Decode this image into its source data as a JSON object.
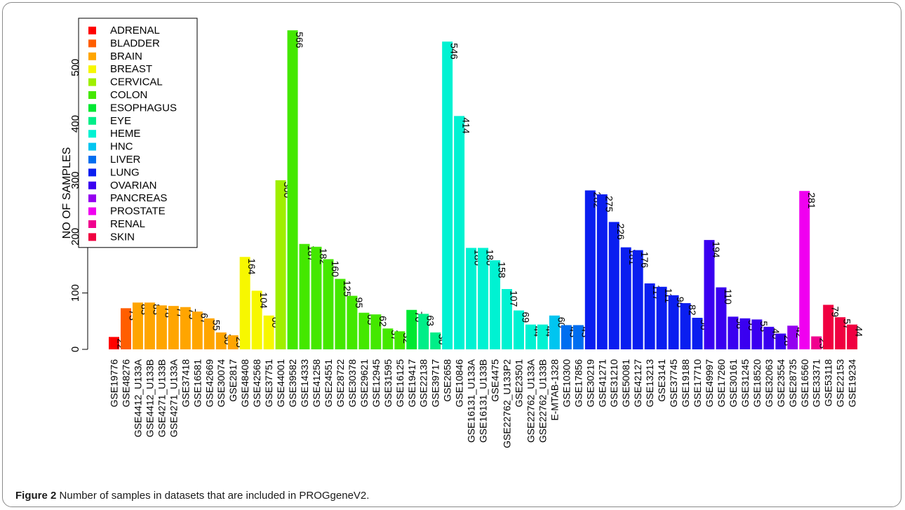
{
  "caption": {
    "label": "Figure 2",
    "text": "Number of samples in datasets that are included in PROGgeneV2."
  },
  "chart_data": {
    "type": "bar",
    "ylabel": "NO OF SAMPLES",
    "xlabel": "",
    "ylim": [
      0,
      580
    ],
    "yticks": [
      0,
      100,
      200,
      300,
      400,
      500
    ],
    "legend_position": "top-left",
    "legend": [
      {
        "name": "ADRENAL",
        "color": "#FF0000"
      },
      {
        "name": "BLADDER",
        "color": "#FF5E00"
      },
      {
        "name": "BRAIN",
        "color": "#FFA500"
      },
      {
        "name": "BREAST",
        "color": "#F7F700"
      },
      {
        "name": "CERVICAL",
        "color": "#9FEF00"
      },
      {
        "name": "COLON",
        "color": "#44E800"
      },
      {
        "name": "ESOPHAGUS",
        "color": "#00E832"
      },
      {
        "name": "EYE",
        "color": "#00EE88"
      },
      {
        "name": "HEME",
        "color": "#00F2D2"
      },
      {
        "name": "HNC",
        "color": "#00C5F0"
      },
      {
        "name": "LIVER",
        "color": "#006EF0"
      },
      {
        "name": "LUNG",
        "color": "#0A1EF0"
      },
      {
        "name": "OVARIAN",
        "color": "#3A00F0"
      },
      {
        "name": "PANCREAS",
        "color": "#9400F0"
      },
      {
        "name": "PROSTATE",
        "color": "#F000F0"
      },
      {
        "name": "RENAL",
        "color": "#F0008E"
      },
      {
        "name": "SKIN",
        "color": "#F00040"
      }
    ],
    "bars": [
      {
        "label": "GSE19776",
        "value": 22,
        "group": "ADRENAL"
      },
      {
        "label": "GSE48276",
        "value": 73,
        "group": "BLADDER"
      },
      {
        "label": "GSE4412_U133A",
        "value": 83,
        "group": "BRAIN"
      },
      {
        "label": "GSE4412_U133B",
        "value": 83,
        "group": "BRAIN"
      },
      {
        "label": "GSE4271_U133B",
        "value": 78,
        "group": "BRAIN"
      },
      {
        "label": "GSE4271_U133A",
        "value": 77,
        "group": "BRAIN"
      },
      {
        "label": "GSE37418",
        "value": 75,
        "group": "BRAIN"
      },
      {
        "label": "GSE16581",
        "value": 67,
        "group": "BRAIN"
      },
      {
        "label": "GSE42669",
        "value": 55,
        "group": "BRAIN"
      },
      {
        "label": "GSE30074",
        "value": 30,
        "group": "BRAIN"
      },
      {
        "label": "GSE2817",
        "value": 25,
        "group": "BRAIN"
      },
      {
        "label": "GSE48408",
        "value": 164,
        "group": "BREAST"
      },
      {
        "label": "GSE42568",
        "value": 104,
        "group": "BREAST"
      },
      {
        "label": "GSE37751",
        "value": 60,
        "group": "BREAST"
      },
      {
        "label": "GSE44001",
        "value": 300,
        "group": "CERVICAL"
      },
      {
        "label": "GSE39582",
        "value": 566,
        "group": "COLON"
      },
      {
        "label": "GSE14333",
        "value": 187,
        "group": "COLON"
      },
      {
        "label": "GSE41258",
        "value": 182,
        "group": "COLON"
      },
      {
        "label": "GSE24551",
        "value": 160,
        "group": "COLON"
      },
      {
        "label": "GSE28722",
        "value": 125,
        "group": "COLON"
      },
      {
        "label": "GSE30378",
        "value": 95,
        "group": "COLON"
      },
      {
        "label": "GSE29621",
        "value": 65,
        "group": "COLON"
      },
      {
        "label": "GSE12945",
        "value": 62,
        "group": "COLON"
      },
      {
        "label": "GSE31595",
        "value": 37,
        "group": "COLON"
      },
      {
        "label": "GSE16125",
        "value": 32,
        "group": "COLON"
      },
      {
        "label": "GSE19417",
        "value": 70,
        "group": "ESOPHAGUS"
      },
      {
        "label": "GSE22138",
        "value": 63,
        "group": "EYE"
      },
      {
        "label": "GSE39717",
        "value": 30,
        "group": "EYE"
      },
      {
        "label": "GSE2658",
        "value": 546,
        "group": "HEME"
      },
      {
        "label": "GSE10846",
        "value": 414,
        "group": "HEME"
      },
      {
        "label": "GSE16131_U133A",
        "value": 180,
        "group": "HEME"
      },
      {
        "label": "GSE16131_U133B",
        "value": 180,
        "group": "HEME"
      },
      {
        "label": "GSE4475",
        "value": 158,
        "group": "HEME"
      },
      {
        "label": "GSE22762_U133P2",
        "value": 107,
        "group": "HEME"
      },
      {
        "label": "GSE23501",
        "value": 69,
        "group": "HEME"
      },
      {
        "label": "GSE22762_U133A",
        "value": 44,
        "group": "HEME"
      },
      {
        "label": "GSE22762_U133B",
        "value": 44,
        "group": "HEME"
      },
      {
        "label": "E-MTAB-1328",
        "value": 60,
        "group": "HNC"
      },
      {
        "label": "GSE10300",
        "value": 43,
        "group": "LIVER"
      },
      {
        "label": "GSE17856",
        "value": 43,
        "group": "LIVER"
      },
      {
        "label": "GSE30219",
        "value": 282,
        "group": "LUNG"
      },
      {
        "label": "GSE41271",
        "value": 275,
        "group": "LUNG"
      },
      {
        "label": "GSE31210",
        "value": 226,
        "group": "LUNG"
      },
      {
        "label": "GSE50081",
        "value": 181,
        "group": "LUNG"
      },
      {
        "label": "GSE42127",
        "value": 176,
        "group": "LUNG"
      },
      {
        "label": "GSE13213",
        "value": 117,
        "group": "LUNG"
      },
      {
        "label": "GSE3141",
        "value": 111,
        "group": "LUNG"
      },
      {
        "label": "GSE37745",
        "value": 96,
        "group": "LUNG"
      },
      {
        "label": "GSE19188",
        "value": 82,
        "group": "LUNG"
      },
      {
        "label": "GSE17710",
        "value": 56,
        "group": "LUNG"
      },
      {
        "label": "GSE49997",
        "value": 194,
        "group": "OVARIAN"
      },
      {
        "label": "GSE17260",
        "value": 110,
        "group": "OVARIAN"
      },
      {
        "label": "GSE30161",
        "value": 58,
        "group": "OVARIAN"
      },
      {
        "label": "GSE31245",
        "value": 55,
        "group": "OVARIAN"
      },
      {
        "label": "GSE18520",
        "value": 53,
        "group": "OVARIAN"
      },
      {
        "label": "GSE32063",
        "value": 40,
        "group": "OVARIAN"
      },
      {
        "label": "GSE23554",
        "value": 28,
        "group": "OVARIAN"
      },
      {
        "label": "GSE28735",
        "value": 42,
        "group": "PANCREAS"
      },
      {
        "label": "GSE16560",
        "value": 281,
        "group": "PROSTATE"
      },
      {
        "label": "GSE33371",
        "value": 23,
        "group": "RENAL"
      },
      {
        "label": "GSE53118",
        "value": 79,
        "group": "SKIN"
      },
      {
        "label": "GSE22153",
        "value": 57,
        "group": "SKIN"
      },
      {
        "label": "GSE19234",
        "value": 44,
        "group": "SKIN"
      }
    ]
  }
}
